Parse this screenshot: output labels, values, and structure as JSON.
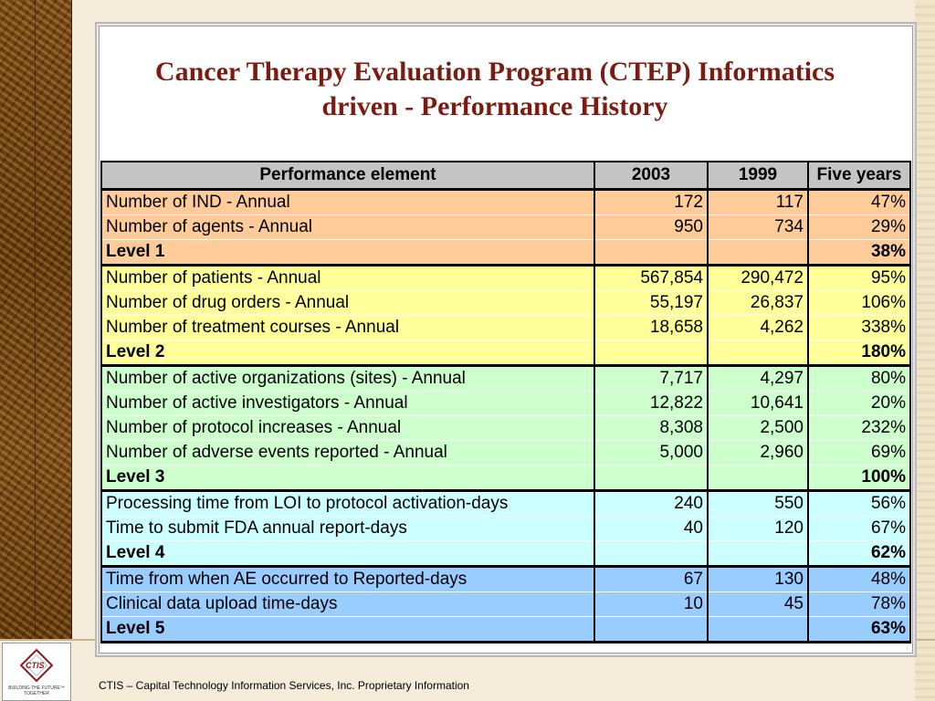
{
  "slide": {
    "title_line1": "Cancer Therapy Evaluation Program (CTEP) Informatics",
    "title_line2": "driven - Performance History",
    "footer": "CTIS – Capital Technology Information Services, Inc. Proprietary Information",
    "logo_text": "CTIS",
    "logo_tagline_1": "BUILDING THE FUTURE™",
    "logo_tagline_2": "TOGETHER"
  },
  "table": {
    "headers": [
      "Performance element",
      "2003",
      "1999",
      "Five years"
    ],
    "rows": [
      {
        "label": "Number of IND - Annual",
        "v2003": "172",
        "v1999": "117",
        "five": "47%"
      },
      {
        "label": "Number of agents - Annual",
        "v2003": "950",
        "v1999": "734",
        "five": "29%"
      },
      {
        "label": "Level 1",
        "v2003": "",
        "v1999": "",
        "five": "38%"
      },
      {
        "label": "Number of patients - Annual",
        "v2003": "567,854",
        "v1999": "290,472",
        "five": "95%"
      },
      {
        "label": "Number of drug orders - Annual",
        "v2003": "55,197",
        "v1999": "26,837",
        "five": "106%"
      },
      {
        "label": "Number of treatment courses - Annual",
        "v2003": "18,658",
        "v1999": "4,262",
        "five": "338%"
      },
      {
        "label": "Level 2",
        "v2003": "",
        "v1999": "",
        "five": "180%"
      },
      {
        "label": "Number of active organizations (sites) - Annual",
        "v2003": "7,717",
        "v1999": "4,297",
        "five": "80%"
      },
      {
        "label": "Number of active investigators - Annual",
        "v2003": "12,822",
        "v1999": "10,641",
        "five": "20%"
      },
      {
        "label": "Number of protocol increases - Annual",
        "v2003": "8,308",
        "v1999": "2,500",
        "five": "232%"
      },
      {
        "label": "Number of adverse events reported - Annual",
        "v2003": "5,000",
        "v1999": "2,960",
        "five": "69%"
      },
      {
        "label": "Level 3",
        "v2003": "",
        "v1999": "",
        "five": "100%"
      },
      {
        "label": "Processing time from LOI to protocol activation-days",
        "v2003": "240",
        "v1999": "550",
        "five": "56%"
      },
      {
        "label": "Time to submit FDA annual report-days",
        "v2003": "40",
        "v1999": "120",
        "five": "67%"
      },
      {
        "label": "Level 4",
        "v2003": "",
        "v1999": "",
        "five": "62%"
      },
      {
        "label": "Time from when AE occurred to Reported-days",
        "v2003": "67",
        "v1999": "130",
        "five": "48%"
      },
      {
        "label": "Clinical data upload time-days",
        "v2003": "10",
        "v1999": "45",
        "five": "78%"
      },
      {
        "label": "Level 5",
        "v2003": "",
        "v1999": "",
        "five": "63%"
      }
    ]
  },
  "colors": {
    "title": "#7b1c12",
    "level1": "#ffcc99",
    "level2": "#ffff99",
    "level3": "#ccffcc",
    "level4": "#ccffff",
    "level5": "#99ccff",
    "header": "#c4c4c4"
  }
}
